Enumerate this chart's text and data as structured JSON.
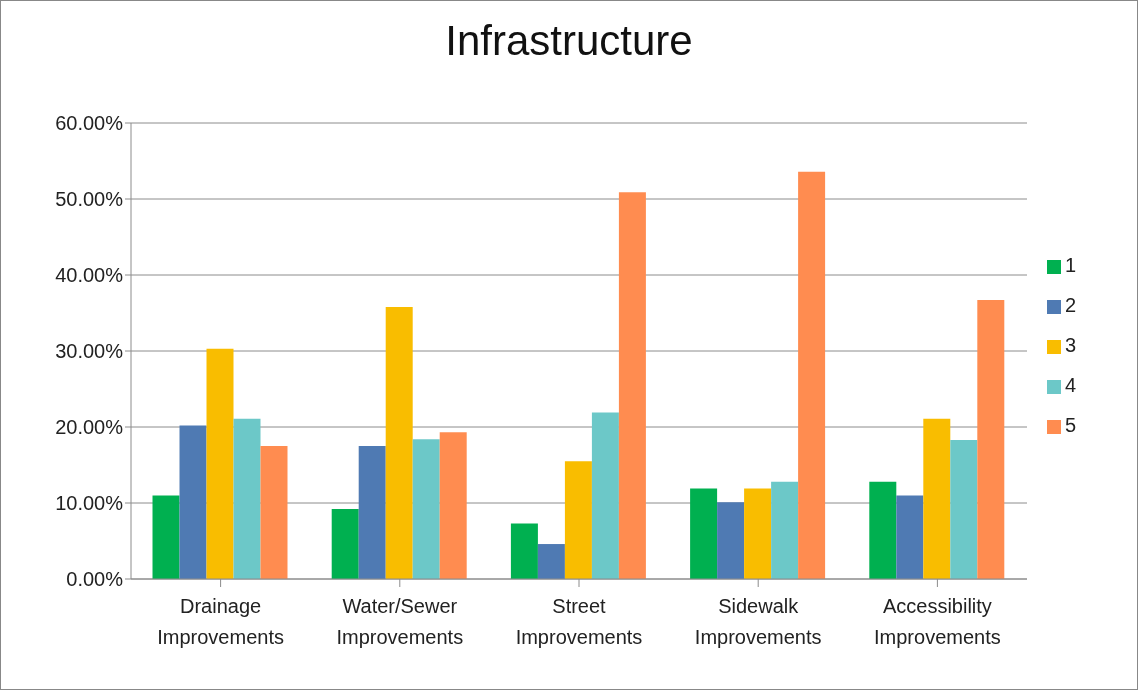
{
  "chart_data": {
    "type": "bar",
    "title": "Infrastructure",
    "categories": [
      "Drainage Improvements",
      "Water/Sewer Improvements",
      "Street Improvements",
      "Sidewalk Improvements",
      "Accessibility Improvements"
    ],
    "series": [
      {
        "name": "1",
        "color": "#00b050",
        "values": [
          11.0,
          9.2,
          7.3,
          11.9,
          12.8
        ]
      },
      {
        "name": "2",
        "color": "#4f7ab3",
        "values": [
          20.2,
          17.5,
          4.6,
          10.1,
          11.0
        ]
      },
      {
        "name": "3",
        "color": "#f9bd00",
        "values": [
          30.3,
          35.8,
          15.5,
          11.9,
          21.1
        ]
      },
      {
        "name": "4",
        "color": "#6cc8c8",
        "values": [
          21.1,
          18.4,
          21.9,
          12.8,
          18.3
        ]
      },
      {
        "name": "5",
        "color": "#ff8c50",
        "values": [
          17.5,
          19.3,
          50.9,
          53.6,
          36.7
        ]
      }
    ],
    "ylim": [
      0,
      60
    ],
    "yticks": [
      {
        "value": 0,
        "label": "0.00%"
      },
      {
        "value": 10,
        "label": "10.00%"
      },
      {
        "value": 20,
        "label": "20.00%"
      },
      {
        "value": 30,
        "label": "30.00%"
      },
      {
        "value": 40,
        "label": "40.00%"
      },
      {
        "value": 50,
        "label": "50.00%"
      },
      {
        "value": 60,
        "label": "60.00%"
      }
    ],
    "grid": "y",
    "legend": "right"
  }
}
